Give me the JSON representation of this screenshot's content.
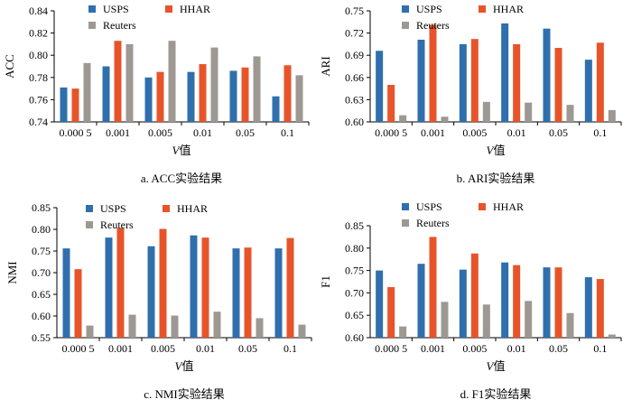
{
  "colors": {
    "usps": "#2f6fad",
    "hhar": "#e8542a",
    "reuters": "#9e9893",
    "axis": "#000000"
  },
  "legend": {
    "usps": "USPS",
    "hhar": "HHAR",
    "reuters": "Reuters"
  },
  "chart_data": [
    {
      "type": "bar",
      "title": "a.  ACC实验结果",
      "xlabel": "V值",
      "ylabel": "ACC",
      "ylim": [
        0.74,
        0.84
      ],
      "ytick_labels": [
        "0.74",
        "0.76",
        "0.78",
        "0.80",
        "0.82",
        "0.84"
      ],
      "categories": [
        "0.000 5",
        "0.001",
        "0.005",
        "0.01",
        "0.05",
        "0.1"
      ],
      "series": [
        {
          "name": "USPS",
          "values": [
            0.771,
            0.79,
            0.78,
            0.785,
            0.786,
            0.763
          ]
        },
        {
          "name": "HHAR",
          "values": [
            0.77,
            0.813,
            0.785,
            0.792,
            0.789,
            0.791
          ]
        },
        {
          "name": "Reuters",
          "values": [
            0.793,
            0.81,
            0.813,
            0.807,
            0.799,
            0.782
          ]
        }
      ]
    },
    {
      "type": "bar",
      "title": "b.  ARI实验结果",
      "xlabel": "V值",
      "ylabel": "ARI",
      "ylim": [
        0.6,
        0.75
      ],
      "ytick_labels": [
        "0.60",
        "0.63",
        "0.66",
        "0.69",
        "0.72",
        "0.75"
      ],
      "categories": [
        "0.000 5",
        "0.001",
        "0.005",
        "0.01",
        "0.05",
        "0.1"
      ],
      "series": [
        {
          "name": "USPS",
          "values": [
            0.696,
            0.711,
            0.705,
            0.733,
            0.726,
            0.684
          ]
        },
        {
          "name": "HHAR",
          "values": [
            0.65,
            0.731,
            0.712,
            0.705,
            0.7,
            0.707
          ]
        },
        {
          "name": "Reuters",
          "values": [
            0.609,
            0.607,
            0.627,
            0.626,
            0.623,
            0.616
          ]
        }
      ]
    },
    {
      "type": "bar",
      "title": "c.  NMI实验结果",
      "xlabel": "V值",
      "ylabel": "NMI",
      "ylim": [
        0.55,
        0.85
      ],
      "ytick_labels": [
        "0.55",
        "0.60",
        "0.65",
        "0.70",
        "0.75",
        "0.80",
        "0.85"
      ],
      "categories": [
        "0.000 5",
        "0.001",
        "0.005",
        "0.01",
        "0.05",
        "0.1"
      ],
      "series": [
        {
          "name": "USPS",
          "values": [
            0.756,
            0.781,
            0.761,
            0.786,
            0.756,
            0.756
          ]
        },
        {
          "name": "HHAR",
          "values": [
            0.708,
            0.803,
            0.801,
            0.781,
            0.758,
            0.78
          ]
        },
        {
          "name": "Reuters",
          "values": [
            0.578,
            0.603,
            0.601,
            0.61,
            0.595,
            0.58
          ]
        }
      ]
    },
    {
      "type": "bar",
      "title": "d.  F1实验结果",
      "xlabel": "V值",
      "ylabel": "F1",
      "ylim": [
        0.6,
        0.85
      ],
      "ytick_labels": [
        "0.60",
        "0.65",
        "0.70",
        "0.75",
        "0.80",
        "0.85"
      ],
      "categories": [
        "0.000 5",
        "0.001",
        "0.005",
        "0.01",
        "0.05",
        "0.1"
      ],
      "series": [
        {
          "name": "USPS",
          "values": [
            0.75,
            0.765,
            0.752,
            0.768,
            0.757,
            0.735
          ]
        },
        {
          "name": "HHAR",
          "values": [
            0.713,
            0.825,
            0.788,
            0.762,
            0.757,
            0.731
          ]
        },
        {
          "name": "Reuters",
          "values": [
            0.625,
            0.68,
            0.674,
            0.682,
            0.655,
            0.607
          ]
        }
      ]
    }
  ]
}
